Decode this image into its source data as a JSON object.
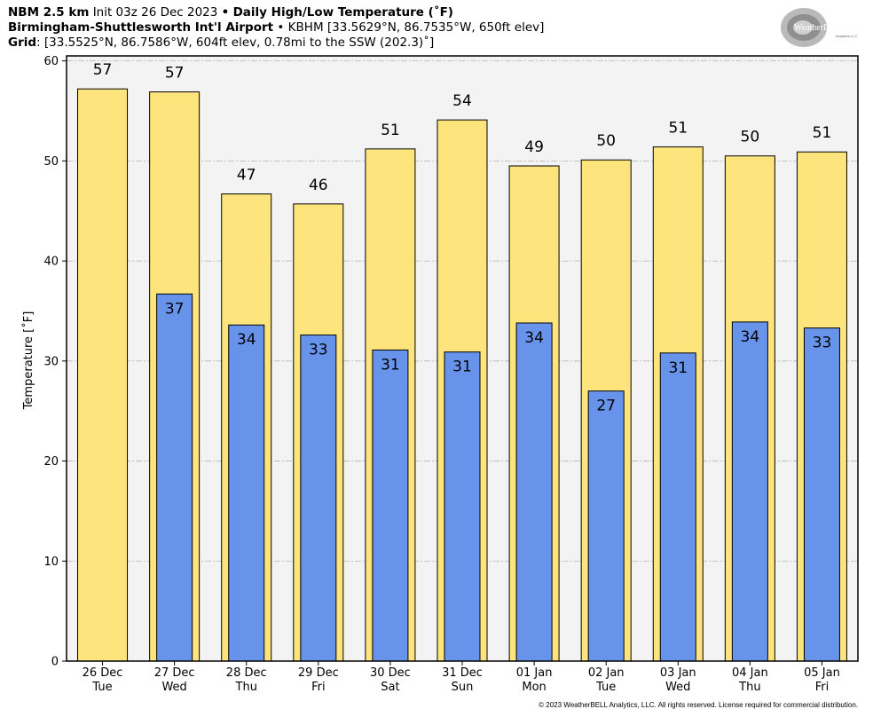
{
  "header": {
    "line1_model": "NBM 2.5 km",
    "line1_init": "Init 03z 26 Dec 2023",
    "line1_sep": "•",
    "line1_product": "Daily High/Low Temperature (˚F)",
    "line2_station": "Birmingham-Shuttlesworth Int'l Airport",
    "line2_sep": "•",
    "line2_coords": "KBHM [33.5629°N, 86.7535°W, 650ft elev]",
    "line3_label": "Grid",
    "line3_value": ": [33.5525°N, 86.7586°W, 604ft elev, 0.78mi to the SSW (202.3)˚]"
  },
  "logo": {
    "text_main": "WeatherBELL",
    "text_sub": "Analytics LLC"
  },
  "copyright": "© 2023 WeatherBELL Analytics, LLC. All rights reserved. License required for commercial distribution.",
  "colors": {
    "high": "#fee47c",
    "low": "#6794ea",
    "plot_bg": "#f3f3f3",
    "grid": "#b5b5b5"
  },
  "chart_data": {
    "type": "bar",
    "title": "Daily High/Low Temperature (˚F)",
    "ylabel": "Temperature [˚F]",
    "ylim": [
      0,
      60.5
    ],
    "yticks": [
      0,
      10,
      20,
      30,
      40,
      50,
      60
    ],
    "grid": true,
    "categories": [
      [
        "26 Dec",
        "Tue"
      ],
      [
        "27 Dec",
        "Wed"
      ],
      [
        "28 Dec",
        "Thu"
      ],
      [
        "29 Dec",
        "Fri"
      ],
      [
        "30 Dec",
        "Sat"
      ],
      [
        "31 Dec",
        "Sun"
      ],
      [
        "01 Jan",
        "Mon"
      ],
      [
        "02 Jan",
        "Tue"
      ],
      [
        "03 Jan",
        "Wed"
      ],
      [
        "04 Jan",
        "Thu"
      ],
      [
        "05 Jan",
        "Fri"
      ]
    ],
    "series": [
      {
        "name": "High",
        "values": [
          57.2,
          56.9,
          46.7,
          45.7,
          51.2,
          54.1,
          49.5,
          50.1,
          51.4,
          50.5,
          50.9
        ],
        "labels": [
          "57",
          "57",
          "47",
          "46",
          "51",
          "54",
          "49",
          "50",
          "51",
          "50",
          "51"
        ]
      },
      {
        "name": "Low",
        "values": [
          null,
          36.7,
          33.6,
          32.6,
          31.1,
          30.9,
          33.8,
          27.0,
          30.8,
          33.9,
          33.3
        ],
        "labels": [
          "",
          "37",
          "34",
          "33",
          "31",
          "31",
          "34",
          "27",
          "31",
          "34",
          "33"
        ]
      }
    ]
  }
}
